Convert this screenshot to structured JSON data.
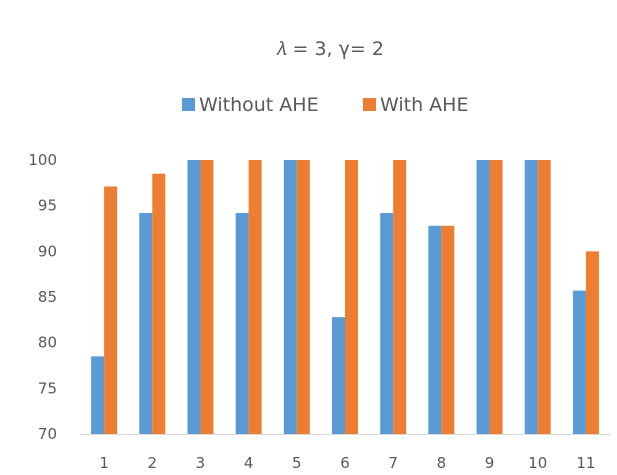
{
  "chart_data": {
    "type": "bar",
    "title": "𝜆 = 3, γ= 2",
    "xlabel": "",
    "ylabel": "",
    "categories": [
      "1",
      "2",
      "3",
      "4",
      "5",
      "6",
      "7",
      "8",
      "9",
      "10",
      "11"
    ],
    "series": [
      {
        "name": "Without AHE",
        "color": "#5B9BD5",
        "values": [
          78.5,
          94.2,
          100,
          94.2,
          100,
          82.8,
          94.2,
          92.8,
          100,
          100,
          85.7
        ]
      },
      {
        "name": "With AHE",
        "color": "#ED7D31",
        "values": [
          97.1,
          98.5,
          100,
          100,
          100,
          100,
          100,
          92.8,
          100,
          100,
          90.0
        ]
      }
    ],
    "ylim": [
      70,
      100
    ],
    "yticks": [
      "70",
      "75",
      "80",
      "85",
      "90",
      "95",
      "100"
    ],
    "grid": false,
    "legend_position": "top-center"
  }
}
